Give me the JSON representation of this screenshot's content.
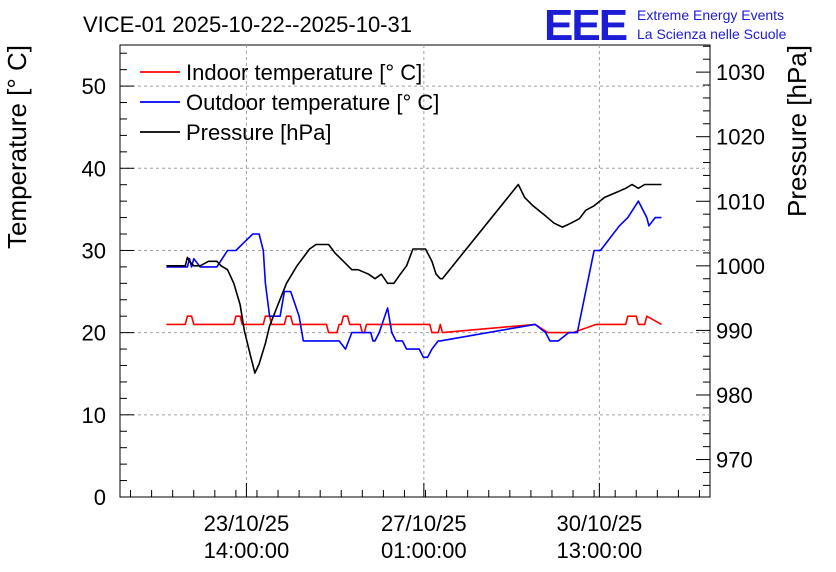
{
  "chart_data": {
    "type": "line",
    "title": "VICE-01 2025-10-22--2025-10-31",
    "branding": {
      "logo_text": "EEE",
      "line1": "Extreme Energy Events",
      "line2": "La Scienza nelle Scuole",
      "color": "#1c1cd4"
    },
    "ylabel": "Temperature [° C]",
    "y2label": "Pressure [hPa]",
    "ylim": [
      0,
      55
    ],
    "y2lim": [
      964.2,
      1034.2
    ],
    "xlim": [
      -6,
      22
    ],
    "y_ticks": [
      0,
      10,
      20,
      30,
      40,
      50
    ],
    "y2_ticks": [
      970,
      980,
      990,
      1000,
      1010,
      1020,
      1030
    ],
    "x_ticks": [
      {
        "x": 0,
        "line1": "23/10/25",
        "line2": "14:00:00"
      },
      {
        "x": 8.42,
        "line1": "27/10/25",
        "line2": "01:00:00"
      },
      {
        "x": 16.75,
        "line1": "30/10/25",
        "line2": "13:00:00"
      }
    ],
    "grid": true,
    "legend_position": "top-left",
    "series": [
      {
        "name": "Indoor temperature [° C]",
        "axis": "left",
        "color": "#ff0000",
        "x": [
          -3.8,
          -2.9,
          -2.8,
          -2.6,
          -2.5,
          -0.6,
          -0.5,
          -0.3,
          -0.2,
          0.8,
          0.9,
          1.1,
          1.2,
          1.8,
          1.9,
          2.1,
          2.2,
          3.8,
          3.9,
          4.3,
          4.4,
          4.5,
          4.6,
          4.8,
          4.9,
          5.4,
          5.5,
          5.6,
          5.7,
          8.7,
          8.8,
          9.1,
          9.2,
          9.3,
          13.7,
          14.3,
          15.5,
          16.6,
          17.6,
          18.0,
          18.1,
          18.5,
          18.6,
          18.9,
          19.0,
          19.7
        ],
        "y": [
          21,
          21,
          22,
          22,
          21,
          21,
          22,
          22,
          21,
          21,
          22,
          22,
          21,
          21,
          22,
          22,
          21,
          21,
          20,
          20,
          21,
          21,
          22,
          22,
          21,
          21,
          20,
          20,
          21,
          21,
          20,
          20,
          21,
          20,
          21,
          20,
          20,
          21,
          21,
          21,
          22,
          22,
          21,
          21,
          22,
          21
        ]
      },
      {
        "name": "Outdoor temperature [° C]",
        "axis": "left",
        "color": "#0000ff",
        "x": [
          -3.8,
          -2.8,
          -2.7,
          -2.6,
          -2.5,
          -2.2,
          -1.4,
          -0.9,
          -0.5,
          -0.1,
          0.3,
          0.6,
          0.8,
          0.9,
          1.1,
          1.6,
          1.8,
          2.1,
          2.5,
          2.7,
          3.8,
          4.1,
          4.4,
          4.7,
          5.0,
          5.9,
          6.0,
          6.1,
          6.3,
          6.7,
          6.9,
          7.1,
          7.4,
          7.6,
          8.2,
          8.4,
          8.6,
          8.8,
          9.1,
          9.2,
          13.7,
          14.2,
          14.4,
          14.8,
          15.3,
          15.7,
          16.1,
          16.5,
          16.8,
          17.1,
          17.7,
          18.1,
          18.6,
          19.0,
          19.1,
          19.4,
          19.7
        ],
        "y": [
          28,
          28,
          29,
          28,
          29,
          28,
          28,
          30,
          30,
          31,
          32,
          32,
          30,
          26,
          22,
          22,
          25,
          25,
          22,
          19,
          19,
          19,
          19,
          18,
          20,
          20,
          19,
          19,
          20,
          23,
          20,
          19,
          19,
          18,
          18,
          17,
          17,
          18,
          19,
          19,
          21,
          20,
          19,
          19,
          20,
          20,
          25,
          30,
          30,
          31,
          33,
          34,
          36,
          34,
          33,
          34,
          34
        ],
        "ymax_note": "hits 36 at peak"
      },
      {
        "name": "Pressure [hPa]",
        "axis": "right",
        "color": "#000000",
        "x": [
          -3.8,
          -2.9,
          -2.8,
          -2.7,
          -2.5,
          -2.2,
          -1.8,
          -1.4,
          -1.2,
          -0.9,
          -0.6,
          -0.3,
          -0.1,
          0.2,
          0.4,
          0.6,
          0.9,
          1.1,
          1.5,
          1.9,
          2.4,
          3.0,
          3.3,
          3.6,
          3.9,
          4.2,
          4.6,
          5.0,
          5.3,
          5.8,
          6.1,
          6.4,
          6.7,
          7.0,
          7.3,
          7.6,
          7.9,
          8.2,
          8.5,
          8.8,
          9.0,
          9.2,
          9.3,
          12.9,
          13.2,
          13.6,
          14.1,
          14.6,
          15.0,
          15.4,
          15.8,
          16.1,
          16.5,
          17.0,
          17.5,
          18.0,
          18.3,
          18.6,
          18.9,
          19.2,
          19.7
        ],
        "y": [
          1000.0,
          1000.0,
          1001.3,
          1000.7,
          1000.0,
          1000.0,
          1000.7,
          1000.7,
          1000.0,
          999.4,
          997.3,
          994.0,
          990.0,
          986.0,
          983.4,
          984.8,
          988.0,
          990.7,
          994.0,
          997.3,
          1000.0,
          1002.6,
          1003.3,
          1003.3,
          1003.3,
          1002.0,
          1000.7,
          999.4,
          999.4,
          998.7,
          998.0,
          998.7,
          997.3,
          997.3,
          998.7,
          1000.0,
          1002.6,
          1002.6,
          1002.6,
          1000.7,
          998.7,
          998.0,
          998.0,
          1012.6,
          1010.6,
          1009.3,
          1008.0,
          1006.6,
          1006.0,
          1006.6,
          1007.3,
          1008.6,
          1009.3,
          1010.6,
          1011.3,
          1012.0,
          1012.6,
          1012.0,
          1012.6,
          1012.6,
          1012.6
        ]
      }
    ]
  }
}
